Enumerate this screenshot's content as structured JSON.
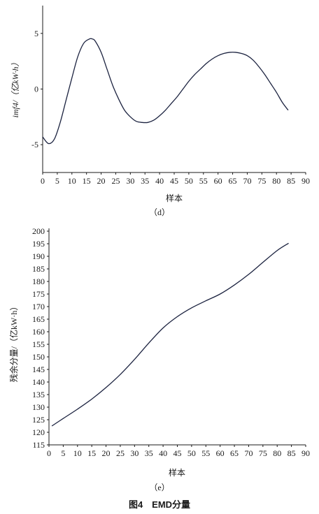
{
  "figure_caption": "图4　EMD分量",
  "chart_data": [
    {
      "type": "line",
      "panel_label": "（d）",
      "xlabel": "样本",
      "ylabel": "imf4/（亿kW·h）",
      "xlim": [
        0,
        90
      ],
      "ylim": [
        -7.5,
        7.5
      ],
      "x_ticks": [
        0,
        5,
        10,
        15,
        20,
        25,
        30,
        35,
        40,
        45,
        50,
        55,
        60,
        65,
        70,
        75,
        80,
        85,
        90
      ],
      "y_ticks": [
        -5,
        0,
        5
      ],
      "series": [
        {
          "x": [
            0,
            2,
            4,
            6,
            8,
            10,
            12,
            14,
            16,
            17,
            18,
            20,
            22,
            24,
            26,
            28,
            30,
            32,
            34,
            36,
            38,
            40,
            42,
            44,
            46,
            48,
            50,
            52,
            54,
            56,
            58,
            60,
            62,
            64,
            66,
            68,
            70,
            72,
            74,
            76,
            78,
            80,
            82,
            84
          ],
          "y": [
            -4.3,
            -4.9,
            -4.5,
            -3.0,
            -1.0,
            1.0,
            2.9,
            4.1,
            4.5,
            4.5,
            4.3,
            3.3,
            1.8,
            0.3,
            -0.9,
            -1.9,
            -2.5,
            -2.9,
            -3.0,
            -3.0,
            -2.8,
            -2.4,
            -1.9,
            -1.3,
            -0.7,
            0.0,
            0.7,
            1.3,
            1.8,
            2.3,
            2.7,
            3.0,
            3.2,
            3.3,
            3.3,
            3.2,
            3.0,
            2.6,
            2.0,
            1.3,
            0.5,
            -0.3,
            -1.2,
            -1.9
          ]
        }
      ]
    },
    {
      "type": "line",
      "panel_label": "（e）",
      "xlabel": "样本",
      "ylabel": "残余分量/（亿kW·h）",
      "xlim": [
        0,
        90
      ],
      "ylim": [
        115,
        200
      ],
      "x_ticks": [
        0,
        5,
        10,
        15,
        20,
        25,
        30,
        35,
        40,
        45,
        50,
        55,
        60,
        65,
        70,
        75,
        80,
        85,
        90
      ],
      "y_ticks": [
        115,
        120,
        125,
        130,
        135,
        140,
        145,
        150,
        155,
        160,
        165,
        170,
        175,
        180,
        185,
        190,
        195,
        200
      ],
      "series": [
        {
          "x": [
            1,
            5,
            10,
            15,
            20,
            25,
            30,
            35,
            40,
            45,
            50,
            55,
            60,
            65,
            70,
            75,
            80,
            84
          ],
          "y": [
            122.5,
            125.5,
            129.2,
            133.2,
            137.8,
            143.0,
            149.0,
            155.5,
            161.5,
            166.0,
            169.5,
            172.3,
            175.0,
            178.6,
            182.8,
            187.6,
            192.3,
            195.2
          ]
        }
      ]
    }
  ]
}
